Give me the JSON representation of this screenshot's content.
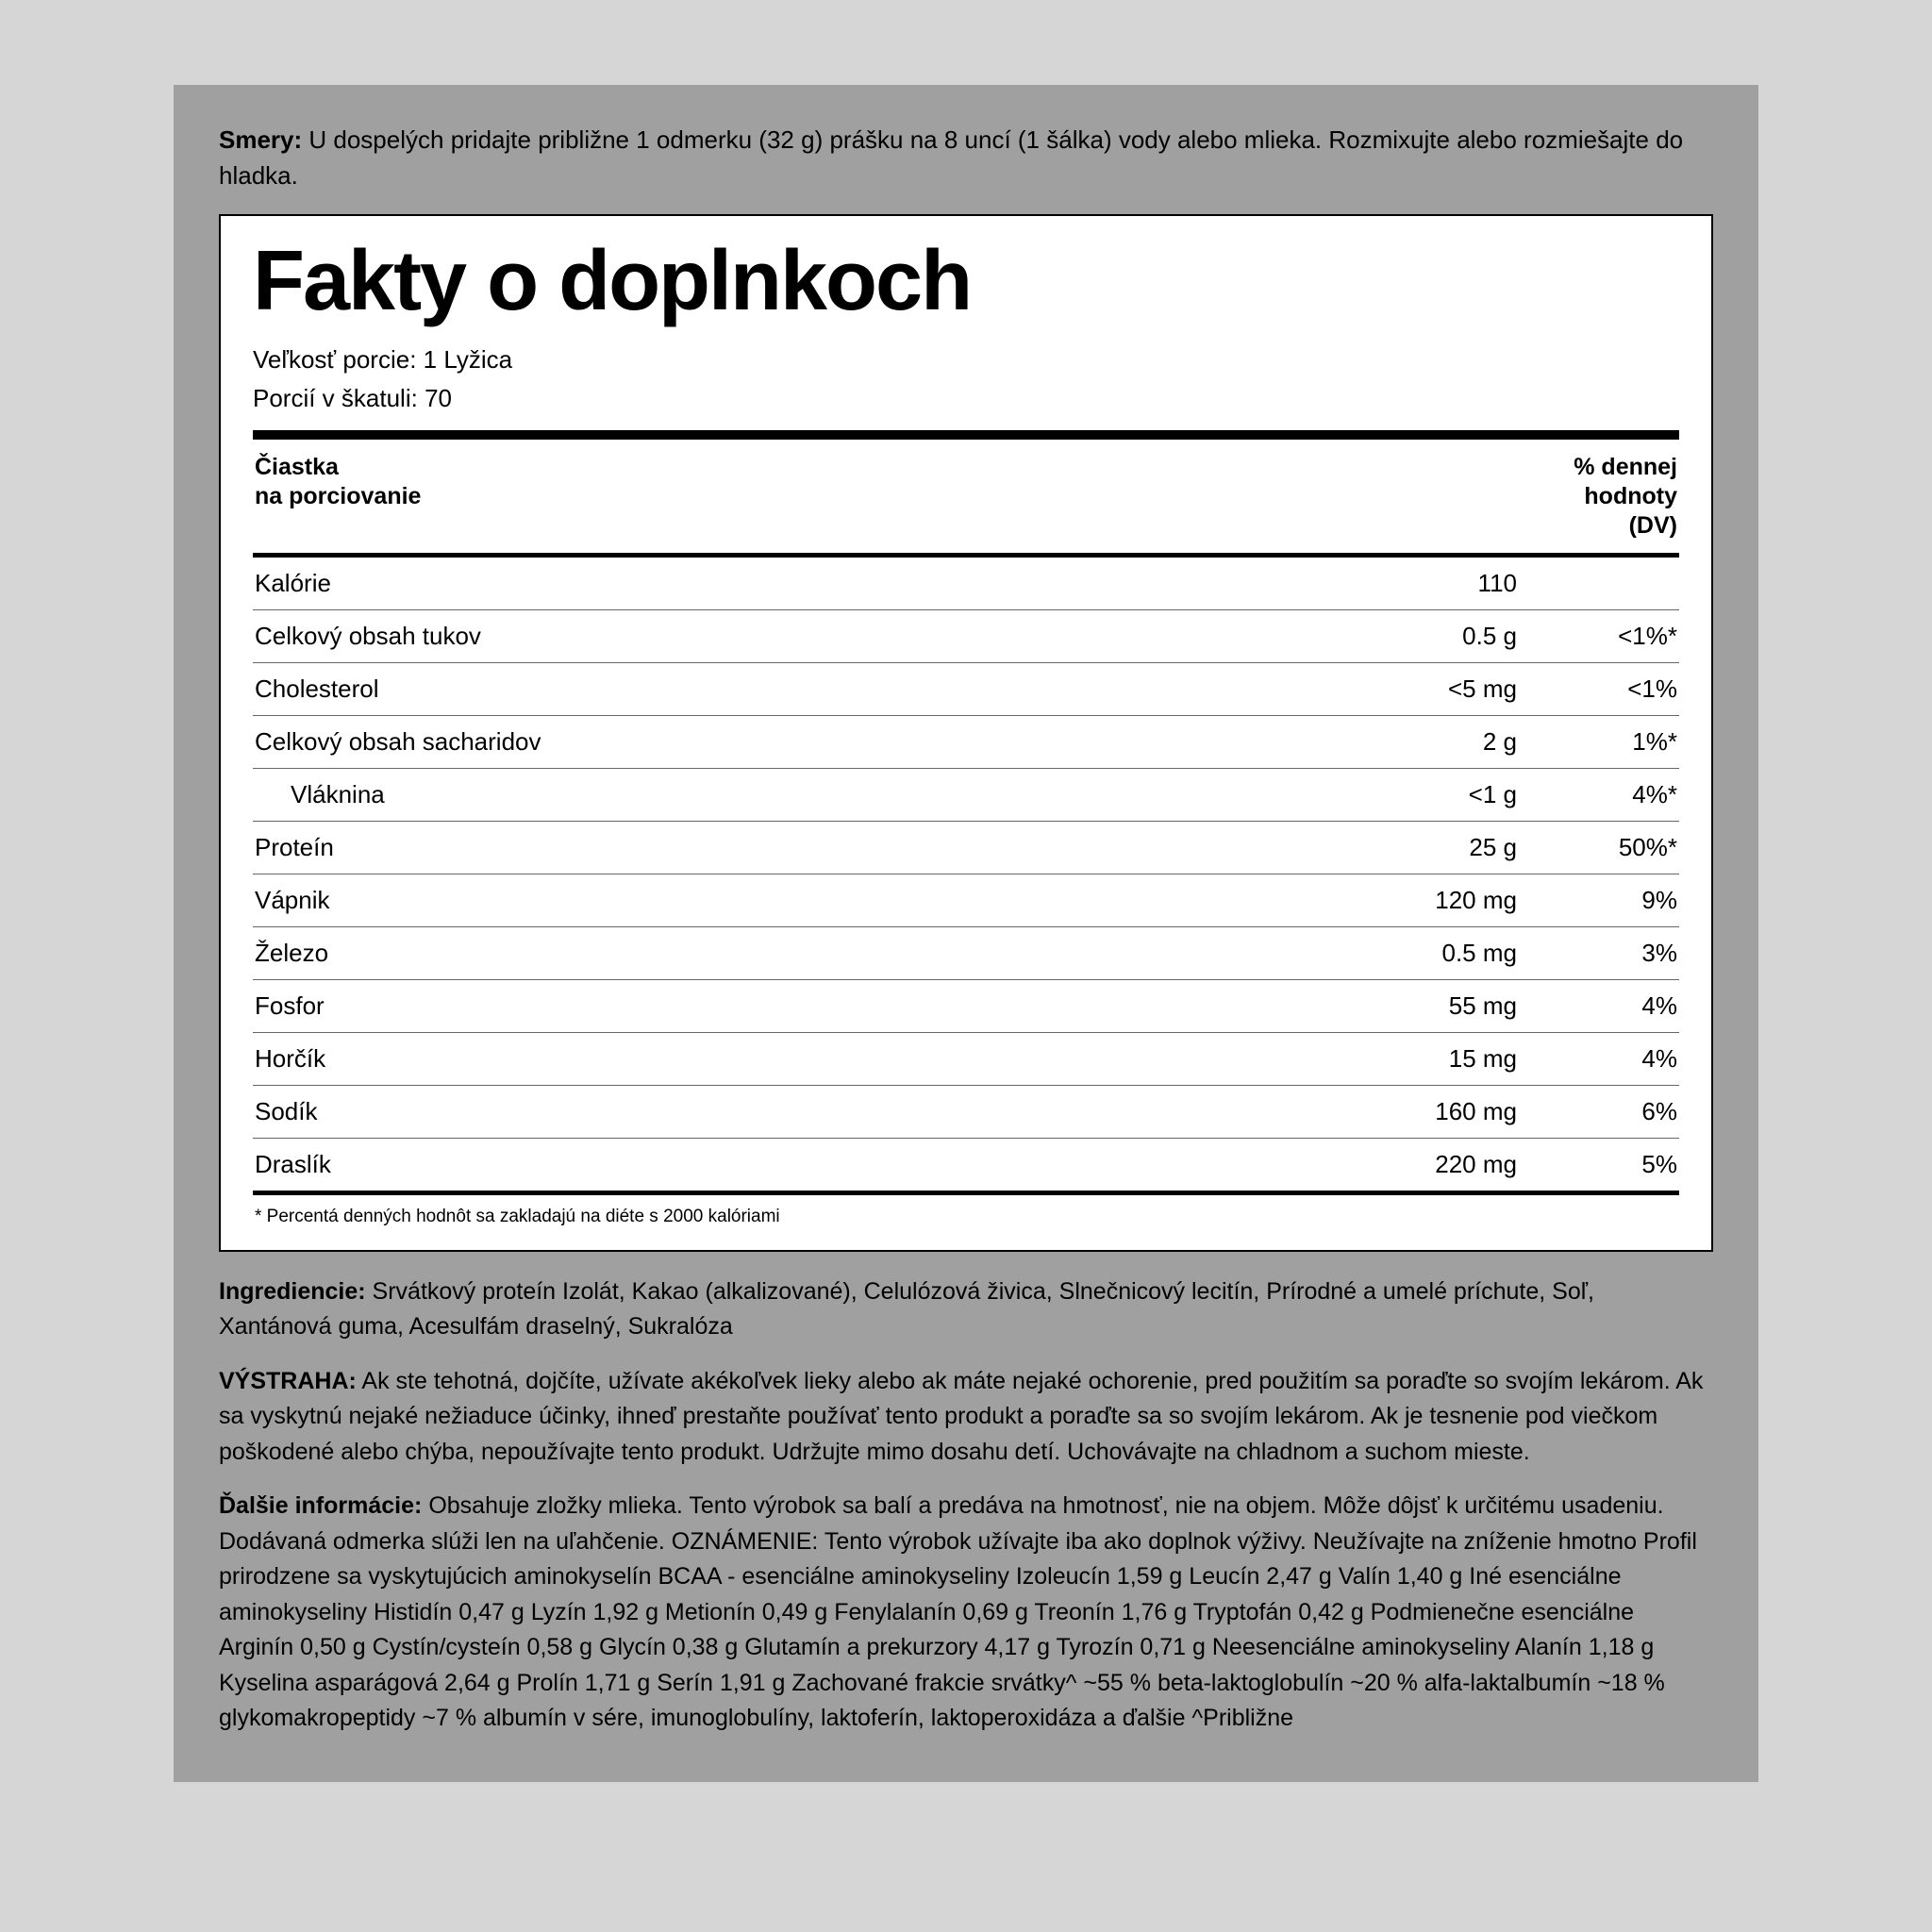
{
  "directions": {
    "label": "Smery:",
    "text": "U dospelých pridajte približne 1 odmerku (32 g) prášku na 8 uncí (1 šálka) vody alebo mlieka. Rozmixujte alebo rozmiešajte do hladka."
  },
  "facts": {
    "title": "Fakty o doplnkoch",
    "serving_size_label": "Veľkosť porcie:",
    "serving_size_value": "1 Lyžica",
    "servings_label": "Porcií v škatuli:",
    "servings_value": "70",
    "header_left_l1": "Čiastka",
    "header_left_l2": "na porciovanie",
    "header_right_l1": "% dennej",
    "header_right_l2": "hodnoty",
    "header_right_l3": "(DV)",
    "rows": [
      {
        "name": "Kalórie",
        "amount": "110",
        "dv": "",
        "indent": false
      },
      {
        "name": "Celkový obsah tukov",
        "amount": "0.5 g",
        "dv": "<1%*",
        "indent": false
      },
      {
        "name": "Cholesterol",
        "amount": "<5 mg",
        "dv": "<1%",
        "indent": false
      },
      {
        "name": "Celkový obsah sacharidov",
        "amount": "2 g",
        "dv": "1%*",
        "indent": false
      },
      {
        "name": "Vláknina",
        "amount": "<1 g",
        "dv": "4%*",
        "indent": true
      },
      {
        "name": "Proteín",
        "amount": "25 g",
        "dv": "50%*",
        "indent": false
      },
      {
        "name": "Vápnik",
        "amount": "120 mg",
        "dv": "9%",
        "indent": false
      },
      {
        "name": "Železo",
        "amount": "0.5 mg",
        "dv": "3%",
        "indent": false
      },
      {
        "name": "Fosfor",
        "amount": "55 mg",
        "dv": "4%",
        "indent": false
      },
      {
        "name": "Horčík",
        "amount": "15 mg",
        "dv": "4%",
        "indent": false
      },
      {
        "name": "Sodík",
        "amount": "160 mg",
        "dv": "6%",
        "indent": false
      },
      {
        "name": "Draslík",
        "amount": "220 mg",
        "dv": "5%",
        "indent": false
      }
    ],
    "footnote": "* Percentá denných hodnôt sa zakladajú na diéte s 2000 kalóriami"
  },
  "ingredients": {
    "label": "Ingrediencie:",
    "text": "Srvátkový proteín Izolát, Kakao (alkalizované), Celulózová živica, Slnečnicový lecitín, Prírodné a umelé príchute, Soľ, Xantánová guma, Acesulfám draselný, Sukralóza"
  },
  "warning": {
    "label": "VÝSTRAHA:",
    "text": "Ak ste tehotná, dojčíte, užívate akékoľvek lieky alebo ak máte nejaké ochorenie, pred použitím sa poraďte so svojím lekárom. Ak sa vyskytnú nejaké nežiaduce účinky, ihneď prestaňte používať tento produkt a poraďte sa so svojím lekárom. Ak je tesnenie pod viečkom poškodené alebo chýba, nepoužívajte tento produkt. Udržujte mimo dosahu detí. Uchovávajte na chladnom a suchom mieste."
  },
  "other": {
    "label": "Ďalšie informácie:",
    "text": "Obsahuje zložky mlieka. Tento výrobok sa balí a predáva na hmotnosť, nie na objem. Môže dôjsť k určitému usadeniu. Dodávaná odmerka slúži len na uľahčenie. OZNÁMENIE: Tento výrobok užívajte iba ako doplnok výživy. Neužívajte na zníženie hmotno Profil prirodzene sa vyskytujúcich aminokyselín BCAA - esenciálne aminokyseliny Izoleucín 1,59 g Leucín 2,47 g Valín 1,40 g Iné esenciálne aminokyseliny Histidín 0,47 g Lyzín 1,92 g Metionín 0,49 g Fenylalanín 0,69 g Treonín 1,76 g Tryptofán 0,42 g Podmienečne esenciálne Arginín 0,50 g Cystín/cysteín 0,58 g Glycín 0,38 g Glutamín a prekurzory 4,17 g Tyrozín 0,71 g Neesenciálne aminokyseliny Alanín 1,18 g Kyselina asparágová 2,64 g Prolín 1,71 g Serín 1,91 g Zachované frakcie srvátky^ ~55 % beta-laktoglobulín ~20 % alfa-laktalbumín ~18 % glykomakropeptidy ~7 % albumín v sére, imunoglobulíny, laktoferín, laktoperoxidáza a ďalšie ^Približne"
  }
}
